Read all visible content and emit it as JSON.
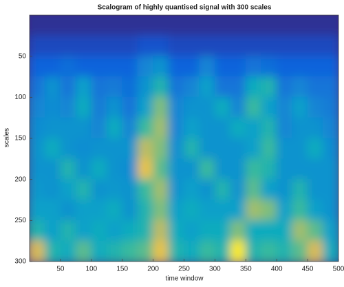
{
  "chart_data": {
    "type": "heatmap",
    "title": "Scalogram of highly quantised signal with 300 scales",
    "x_label": "time window",
    "y_label": "scales",
    "xlim": [
      0,
      500
    ],
    "xticks": [
      50,
      100,
      150,
      200,
      250,
      300,
      350,
      400,
      450,
      500
    ],
    "ylim": [
      0,
      300
    ],
    "yticks": [
      50,
      100,
      150,
      200,
      250,
      300
    ],
    "y_reversed": true,
    "colormap": [
      "#352a87",
      "#0f5cdd",
      "#1485d4",
      "#06a7c6",
      "#38b99e",
      "#92bf73",
      "#d9ba56",
      "#fcce2e",
      "#f9fb0e"
    ],
    "z": [
      [
        0.02,
        0.02,
        0.02,
        0.02,
        0.02,
        0.02,
        0.02,
        0.02,
        0.02,
        0.02,
        0.02,
        0.02,
        0.02,
        0.02,
        0.02,
        0.02,
        0.02,
        0.02,
        0.02,
        0.02
      ],
      [
        0.08,
        0.08,
        0.08,
        0.08,
        0.08,
        0.08,
        0.08,
        0.1,
        0.1,
        0.08,
        0.08,
        0.08,
        0.08,
        0.08,
        0.08,
        0.08,
        0.08,
        0.08,
        0.08,
        0.08
      ],
      [
        0.15,
        0.15,
        0.18,
        0.15,
        0.15,
        0.15,
        0.15,
        0.25,
        0.3,
        0.15,
        0.15,
        0.25,
        0.15,
        0.15,
        0.2,
        0.18,
        0.15,
        0.15,
        0.15,
        0.15
      ],
      [
        0.2,
        0.3,
        0.2,
        0.35,
        0.2,
        0.22,
        0.18,
        0.3,
        0.45,
        0.2,
        0.25,
        0.35,
        0.2,
        0.2,
        0.4,
        0.45,
        0.2,
        0.25,
        0.2,
        0.2
      ],
      [
        0.25,
        0.28,
        0.25,
        0.4,
        0.22,
        0.3,
        0.2,
        0.35,
        0.6,
        0.25,
        0.3,
        0.3,
        0.4,
        0.25,
        0.5,
        0.35,
        0.25,
        0.35,
        0.25,
        0.22
      ],
      [
        0.28,
        0.3,
        0.3,
        0.3,
        0.25,
        0.4,
        0.25,
        0.5,
        0.65,
        0.25,
        0.35,
        0.3,
        0.3,
        0.4,
        0.35,
        0.45,
        0.25,
        0.3,
        0.3,
        0.25
      ],
      [
        0.3,
        0.4,
        0.3,
        0.28,
        0.3,
        0.3,
        0.3,
        0.7,
        0.6,
        0.28,
        0.45,
        0.3,
        0.3,
        0.3,
        0.35,
        0.5,
        0.3,
        0.3,
        0.4,
        0.28
      ],
      [
        0.3,
        0.3,
        0.45,
        0.3,
        0.4,
        0.3,
        0.28,
        0.8,
        0.55,
        0.3,
        0.3,
        0.5,
        0.3,
        0.3,
        0.5,
        0.45,
        0.3,
        0.3,
        0.3,
        0.3
      ],
      [
        0.32,
        0.3,
        0.35,
        0.45,
        0.3,
        0.32,
        0.3,
        0.5,
        0.65,
        0.3,
        0.35,
        0.3,
        0.45,
        0.3,
        0.55,
        0.35,
        0.3,
        0.45,
        0.3,
        0.3
      ],
      [
        0.35,
        0.35,
        0.3,
        0.35,
        0.35,
        0.4,
        0.3,
        0.45,
        0.6,
        0.35,
        0.4,
        0.35,
        0.35,
        0.35,
        0.65,
        0.6,
        0.35,
        0.5,
        0.35,
        0.3
      ],
      [
        0.45,
        0.35,
        0.45,
        0.35,
        0.4,
        0.35,
        0.4,
        0.45,
        0.7,
        0.4,
        0.35,
        0.4,
        0.4,
        0.6,
        0.4,
        0.4,
        0.4,
        0.65,
        0.55,
        0.35
      ],
      [
        0.75,
        0.45,
        0.4,
        0.55,
        0.4,
        0.45,
        0.5,
        0.55,
        0.8,
        0.45,
        0.4,
        0.5,
        0.45,
        0.95,
        0.45,
        0.5,
        0.45,
        0.55,
        0.75,
        0.4
      ]
    ]
  }
}
